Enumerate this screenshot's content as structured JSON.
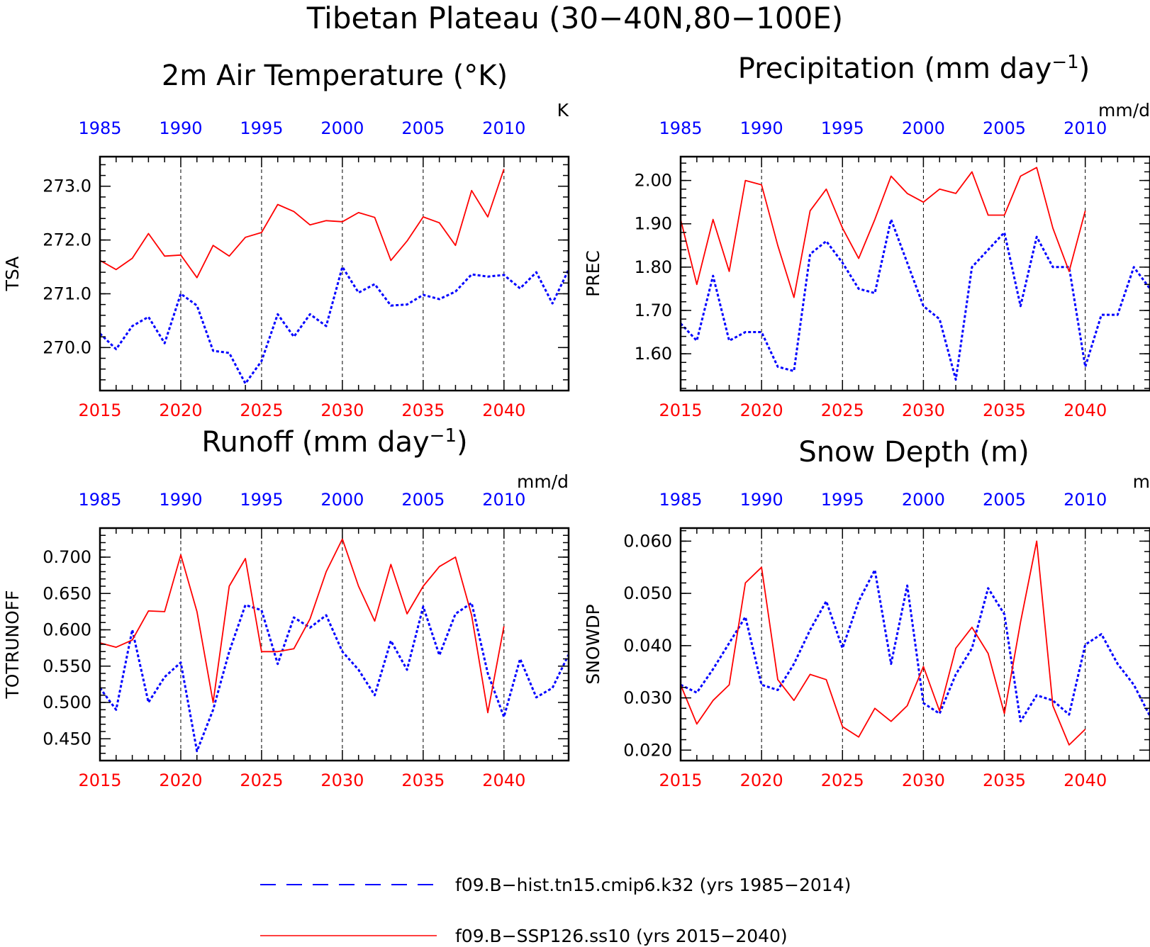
{
  "figure_title": "Tibetan Plateau (30−40N,80−100E)",
  "colors": {
    "historical": "#0000ff",
    "future": "#ff0000",
    "axis": "#000000"
  },
  "legend": [
    {
      "label": "f09.B−hist.tn15.cmip6.k32 (yrs 1985−2014)",
      "color": "#0000ff",
      "style": "dashed"
    },
    {
      "label": "f09.B−SSP126.ss10 (yrs 2015−2040)",
      "color": "#ff0000",
      "style": "solid"
    }
  ],
  "chart_data": [
    {
      "type": "line",
      "title": "2m Air Temperature (°K)",
      "title_sup": "",
      "title_tail": "",
      "units": "K",
      "ylabel": "TSA",
      "ylim": [
        269.2,
        273.55
      ],
      "yticks": [
        270.0,
        271.0,
        272.0,
        273.0
      ],
      "ytick_labels": [
        "270.0",
        "271.0",
        "272.0",
        "273.0"
      ],
      "yminor_step": 0.2,
      "x_bottom_ticks": [
        "2015",
        "2020",
        "2025",
        "2030",
        "2035",
        "2040"
      ],
      "x_top_ticks": [
        "1985",
        "1990",
        "1995",
        "2000",
        "2005",
        "2010"
      ],
      "series": [
        {
          "name": "f09.B−hist.tn15.cmip6.k32 (yrs 1985−2014)",
          "years_offset": 30,
          "values": [
            270.26,
            269.97,
            270.4,
            270.57,
            270.08,
            271.0,
            270.78,
            269.94,
            269.9,
            269.33,
            269.75,
            270.62,
            270.2,
            270.62,
            270.4,
            271.5,
            271.02,
            271.18,
            270.78,
            270.8,
            270.98,
            270.9,
            271.04,
            271.36,
            271.32,
            271.35,
            271.1,
            271.4,
            270.82,
            271.45
          ]
        },
        {
          "name": "f09.B−SSP126.ss10 (yrs 2015−2040)",
          "years_offset": 0,
          "values": [
            271.62,
            271.45,
            271.66,
            272.12,
            271.7,
            271.72,
            271.3,
            271.9,
            271.7,
            272.05,
            272.14,
            272.66,
            272.53,
            272.28,
            272.36,
            272.34,
            272.51,
            272.42,
            271.62,
            271.98,
            272.43,
            272.32,
            271.9,
            272.92,
            272.43,
            273.32
          ]
        }
      ]
    },
    {
      "type": "line",
      "title": "Precipitation (mm day",
      "title_sup": "−1",
      "title_tail": ")",
      "units": "mm/d",
      "ylabel": "PREC",
      "ylim": [
        1.515,
        2.055
      ],
      "yticks": [
        1.6,
        1.7,
        1.8,
        1.9,
        2.0
      ],
      "ytick_labels": [
        "1.60",
        "1.70",
        "1.80",
        "1.90",
        "2.00"
      ],
      "yminor_step": 0.02,
      "x_bottom_ticks": [
        "2015",
        "2020",
        "2025",
        "2030",
        "2035",
        "2040"
      ],
      "x_top_ticks": [
        "1985",
        "1990",
        "1995",
        "2000",
        "2005",
        "2010"
      ],
      "series": [
        {
          "name": "f09.B−hist.tn15.cmip6.k32 (yrs 1985−2014)",
          "years_offset": 30,
          "values": [
            1.67,
            1.63,
            1.78,
            1.63,
            1.65,
            1.65,
            1.57,
            1.56,
            1.83,
            1.86,
            1.81,
            1.75,
            1.74,
            1.91,
            1.81,
            1.71,
            1.68,
            1.54,
            1.8,
            1.84,
            1.88,
            1.71,
            1.87,
            1.8,
            1.8,
            1.57,
            1.69,
            1.69,
            1.8,
            1.75
          ]
        },
        {
          "name": "f09.B−SSP126.ss10 (yrs 2015−2040)",
          "years_offset": 0,
          "values": [
            1.91,
            1.76,
            1.91,
            1.79,
            2.0,
            1.99,
            1.85,
            1.73,
            1.93,
            1.98,
            1.89,
            1.82,
            1.91,
            2.01,
            1.97,
            1.95,
            1.98,
            1.97,
            2.02,
            1.92,
            1.92,
            2.01,
            2.03,
            1.89,
            1.79,
            1.93
          ]
        }
      ]
    },
    {
      "type": "line",
      "title": "Runoff (mm day",
      "title_sup": "−1",
      "title_tail": ")",
      "units": "mm/d",
      "ylabel": "TOTRUNOFF",
      "ylim": [
        0.42,
        0.74
      ],
      "yticks": [
        0.45,
        0.5,
        0.55,
        0.6,
        0.65,
        0.7
      ],
      "ytick_labels": [
        "0.450",
        "0.500",
        "0.550",
        "0.600",
        "0.650",
        "0.700"
      ],
      "yminor_step": 0.01,
      "x_bottom_ticks": [
        "2015",
        "2020",
        "2025",
        "2030",
        "2035",
        "2040"
      ],
      "x_top_ticks": [
        "1985",
        "1990",
        "1995",
        "2000",
        "2005",
        "2010"
      ],
      "series": [
        {
          "name": "f09.B−hist.tn15.cmip6.k32 (yrs 1985−2014)",
          "years_offset": 30,
          "values": [
            0.52,
            0.49,
            0.6,
            0.5,
            0.535,
            0.555,
            0.433,
            0.49,
            0.57,
            0.634,
            0.627,
            0.553,
            0.617,
            0.603,
            0.62,
            0.57,
            0.545,
            0.51,
            0.585,
            0.545,
            0.632,
            0.565,
            0.622,
            0.637,
            0.54,
            0.48,
            0.56,
            0.507,
            0.52,
            0.566
          ]
        },
        {
          "name": "f09.B−SSP126.ss10 (yrs 2015−2040)",
          "years_offset": 0,
          "values": [
            0.582,
            0.576,
            0.586,
            0.626,
            0.625,
            0.703,
            0.625,
            0.5,
            0.66,
            0.698,
            0.57,
            0.57,
            0.574,
            0.615,
            0.68,
            0.725,
            0.66,
            0.612,
            0.69,
            0.622,
            0.66,
            0.687,
            0.7,
            0.62,
            0.486,
            0.605
          ]
        }
      ]
    },
    {
      "type": "line",
      "title": "Snow Depth (m)",
      "title_sup": "",
      "title_tail": "",
      "units": "m",
      "ylabel": "SNOWDP",
      "ylim": [
        0.018,
        0.0625
      ],
      "yticks": [
        0.02,
        0.03,
        0.04,
        0.05,
        0.06
      ],
      "ytick_labels": [
        "0.020",
        "0.030",
        "0.040",
        "0.050",
        "0.060"
      ],
      "yminor_step": 0.002,
      "x_bottom_ticks": [
        "2015",
        "2020",
        "2025",
        "2030",
        "2035",
        "2040"
      ],
      "x_top_ticks": [
        "1985",
        "1990",
        "1995",
        "2000",
        "2005",
        "2010"
      ],
      "series": [
        {
          "name": "f09.B−hist.tn15.cmip6.k32 (yrs 1985−2014)",
          "years_offset": 30,
          "values": [
            0.0325,
            0.031,
            0.0355,
            0.0405,
            0.0455,
            0.0325,
            0.0315,
            0.0365,
            0.043,
            0.0485,
            0.0395,
            0.0485,
            0.0545,
            0.0365,
            0.0515,
            0.029,
            0.027,
            0.0345,
            0.0395,
            0.051,
            0.046,
            0.0255,
            0.0305,
            0.0295,
            0.0268,
            0.0402,
            0.0422,
            0.0365,
            0.0325,
            0.0265
          ]
        },
        {
          "name": "f09.B−SSP126.ss10 (yrs 2015−2040)",
          "years_offset": 0,
          "values": [
            0.0325,
            0.025,
            0.0295,
            0.0325,
            0.052,
            0.055,
            0.0335,
            0.0295,
            0.0345,
            0.0335,
            0.0245,
            0.0225,
            0.028,
            0.0255,
            0.0285,
            0.036,
            0.0275,
            0.0395,
            0.0435,
            0.0385,
            0.027,
            0.0445,
            0.06,
            0.0285,
            0.021,
            0.024
          ]
        }
      ]
    }
  ]
}
